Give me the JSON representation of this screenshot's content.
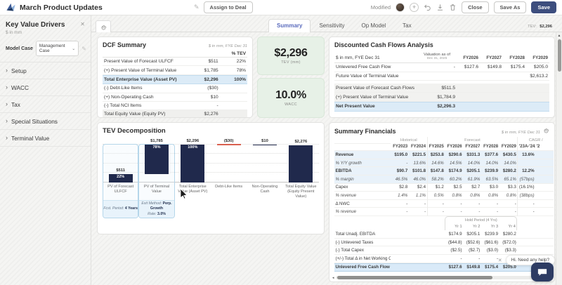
{
  "colors": {
    "accent_blue": "#5a6bbd",
    "navy_bar": "#20294c",
    "bar_red": "#d9604f",
    "highlight_blue": "#dcebf7",
    "card_green": "#e7f1e7",
    "save_navy": "#3d4e7e"
  },
  "icons": {
    "chevron_right": "›",
    "chevron_down": "⌄",
    "close": "✕",
    "pencil": "✎",
    "plus": "+",
    "up_arrow": "▲",
    "left_arrow": "◂"
  },
  "topbar": {
    "title": "March Product Updates",
    "assign_button": "Assign to Deal",
    "modified_label": "Modified",
    "close_button": "Close",
    "save_as_button": "Save As",
    "save_button": "Save"
  },
  "sidebar": {
    "title": "Key Value Drivers",
    "subtitle": "$ in mm",
    "model_case_label": "Model Case",
    "model_case_value": "Management Case",
    "sections": [
      {
        "label": "Setup"
      },
      {
        "label": "WACC"
      },
      {
        "label": "Tax"
      },
      {
        "label": "Special Situations"
      },
      {
        "label": "Terminal Value"
      }
    ]
  },
  "tabs": {
    "items": [
      {
        "label": "Summary",
        "active": true
      },
      {
        "label": "Sensitivity",
        "active": false
      },
      {
        "label": "Op Model",
        "active": false
      },
      {
        "label": "Tax",
        "active": false
      }
    ],
    "tev_label": "TEV:",
    "tev_value": "$2,296",
    "wacc_label": "WACC:",
    "wacc_value": "10.0%"
  },
  "dcf_summary": {
    "title": "DCF Summary",
    "subtitle": "$ in mm, FYE Dec 31",
    "col_header": "% TEV",
    "rows": [
      {
        "label": "Present Value of Forecast ULFCF",
        "value": "$511",
        "pct": "22%",
        "style": ""
      },
      {
        "label": "(+) Present Value of Terminal Value",
        "value": "$1,785",
        "pct": "78%",
        "style": ""
      },
      {
        "label": "Total Enterprise Value (Asset PV)",
        "value": "$2,296",
        "pct": "100%",
        "style": "blue"
      },
      {
        "label": "(-) Debt-Like Items",
        "value": "($30)",
        "pct": "",
        "style": ""
      },
      {
        "label": "(+) Non-Operating Cash",
        "value": "$10",
        "pct": "",
        "style": ""
      },
      {
        "label": "(-) Total NCI Items",
        "value": "-",
        "pct": "",
        "style": ""
      },
      {
        "label": "Total Equity Value (Equity PV)",
        "value": "$2,276",
        "pct": "",
        "style": "gray"
      }
    ]
  },
  "metric_cards": [
    {
      "value": "$2,296",
      "label": "TEV (mm)"
    },
    {
      "value": "10.0%",
      "label": "WACC"
    }
  ],
  "dcf_analysis": {
    "title": "Discounted Cash Flows Analysis",
    "corner": "$ in mm, FYE Dec 31",
    "val_col_line1": "Valuation as of",
    "val_col_line2": "Dec 31, 2025",
    "years": [
      "FY2026",
      "FY2027",
      "FY2028",
      "FY2029"
    ],
    "rows": [
      {
        "label": "Unlevered Free Cash Flow",
        "val": "-",
        "y": [
          "$127.6",
          "$149.8",
          "$175.4",
          "$205.0"
        ]
      },
      {
        "label": "Future Value of Terminal Value",
        "val": "",
        "y": [
          "",
          "",
          "",
          "$2,613.2"
        ]
      }
    ],
    "pv_rows": [
      {
        "label": "Present Value of Forecast Cash Flows",
        "val": "$511.5",
        "style": "grayrow"
      },
      {
        "label": "(+) Present Value of Terminal Value",
        "val": "$1,784.9",
        "style": "grayrow"
      },
      {
        "label": "Net Present Value",
        "val": "$2,296.3",
        "style": "bluerow"
      }
    ]
  },
  "tev_decomposition": {
    "title": "TEV Decomposition",
    "chart_data": {
      "type": "bar",
      "subtype": "waterfall",
      "title": "TEV Decomposition",
      "unit": "$ in mm",
      "categories": [
        "PV of Forecast ULFCF",
        "PV of Terminal Value",
        "Total Enterprise Value (Asset PV)",
        "Debt-Like Items",
        "Non-Operating Cash",
        "Total Equity Value (Equity Present Value)"
      ],
      "values": [
        511,
        1785,
        2296,
        -30,
        10,
        2276
      ],
      "ylim": [
        0,
        2296
      ],
      "grid": "dotted-horizontal",
      "bars": [
        {
          "category": "PV of Forecast ULFCF",
          "value_label": "$511",
          "pct_label": "22%",
          "bottom": 0,
          "height": 22.3,
          "color": "navy",
          "selected": true,
          "footer": [
            {
              "k": "Fcst. Period:",
              "v": "4 Years"
            }
          ]
        },
        {
          "category": "PV of Terminal Value",
          "value_label": "$1,785",
          "pct_label": "78%",
          "bottom": 22.3,
          "height": 77.7,
          "color": "navy",
          "selected": true,
          "footer": [
            {
              "k": "Exit Method:",
              "v": "Perp. Growth"
            },
            {
              "k": "Rate:",
              "v": "3.0%"
            }
          ]
        },
        {
          "category": "Total Enterprise Value (Asset PV)",
          "value_label": "$2,296",
          "pct_label": "100%",
          "bottom": 0,
          "height": 100,
          "color": "navy",
          "selected": false
        },
        {
          "category": "Debt-Like Items",
          "value_label": "($30)",
          "pct_label": "",
          "bottom": 98.7,
          "height": 1.3,
          "color": "red",
          "selected": false
        },
        {
          "category": "Non-Operating Cash",
          "value_label": "$10",
          "pct_label": "",
          "bottom": 98.7,
          "height": 0.5,
          "color": "navy",
          "selected": false
        },
        {
          "category": "Total Equity Value (Equity Present Value)",
          "value_label": "$2,276",
          "pct_label": "",
          "bottom": 0,
          "height": 99.1,
          "color": "navy",
          "selected": false
        }
      ]
    }
  },
  "summary_financials": {
    "title": "Summary Financials",
    "subtitle": "$ in mm, FYE Dec 31",
    "group_historical": "Historical",
    "group_forecast": "Forecast",
    "group_cagr": "CAGR /",
    "years": [
      "FY2023",
      "FY2024",
      "FY2025",
      "FY2026",
      "FY2027",
      "FY2028",
      "FY2029"
    ],
    "cagr_col_header": "'23A-'24A",
    "clipped_col_header": "'2",
    "rows": [
      {
        "label": "Revenue",
        "bold": true,
        "shade": true,
        "cells": [
          "$195.0",
          "$221.5",
          "$253.8",
          "$290.6",
          "$331.3",
          "$377.6",
          "$430.5"
        ],
        "cagr": "13.6%",
        "cagr_bold": true
      },
      {
        "label": "% Y/Y growth",
        "italic": true,
        "shade": true,
        "cells": [
          "-",
          "13.6%",
          "14.6%",
          "14.5%",
          "14.0%",
          "14.0%",
          "14.0%"
        ],
        "cagr": ""
      },
      {
        "label": "EBITDA",
        "bold": true,
        "shade": true,
        "cells": [
          "$90.7",
          "$101.8",
          "$147.8",
          "$174.9",
          "$205.1",
          "$239.9",
          "$280.2"
        ],
        "cagr": "12.2%",
        "cagr_bold": true
      },
      {
        "label": "% margin",
        "italic": true,
        "shade": true,
        "cells": [
          "46.5%",
          "46.0%",
          "58.2%",
          "60.2%",
          "61.9%",
          "63.5%",
          "65.1%"
        ],
        "cagr": "(57bps)",
        "cagr_italic": true
      },
      {
        "label": "Capex",
        "cells": [
          "$2.8",
          "$2.4",
          "$1.2",
          "$2.5",
          "$2.7",
          "$3.0",
          "$3.3"
        ],
        "cagr": "(16.1%)"
      },
      {
        "label": "% revenue",
        "italic": true,
        "cells": [
          "1.4%",
          "1.1%",
          "0.5%",
          "0.8%",
          "0.8%",
          "0.8%",
          "0.8%"
        ],
        "cagr": "(38bps)",
        "cagr_italic": true
      },
      {
        "label": "Δ NWC",
        "cells": [
          "-",
          "-",
          "-",
          "-",
          "-",
          "-",
          "-"
        ],
        "cagr": "-"
      },
      {
        "label": "% revenue",
        "italic": true,
        "cells": [
          "-",
          "-",
          "-",
          "-",
          "-",
          "-",
          "-"
        ],
        "cagr": "-"
      }
    ],
    "hold_period": {
      "box_title": "Hold Period (4 Yrs)",
      "yr_labels": [
        "Yr 1",
        "Yr 2",
        "Yr 3",
        "Yr 4"
      ],
      "rows": [
        {
          "label": "Total Unadj. EBITDA",
          "cells": [
            "$174.9",
            "$205.1",
            "$239.9",
            "$280.2"
          ]
        },
        {
          "label": "(-) Unlevered Taxes",
          "cells": [
            "($44.8)",
            "($52.6)",
            "($61.6)",
            "($72.0)"
          ]
        },
        {
          "label": "(-) Total Capex",
          "cells": [
            "($2.5)",
            "($2.7)",
            "($3.0)",
            "($3.3)"
          ]
        },
        {
          "label": "(+/-) Total Δ in Net Working Capital",
          "cells": [
            "-",
            "-",
            "-",
            "-"
          ]
        },
        {
          "label": "Unlevered Free Cash Flow",
          "bold": true,
          "ufcf": true,
          "cells": [
            "$127.6",
            "$149.8",
            "$175.4",
            "$205.0"
          ]
        }
      ]
    }
  },
  "chat": {
    "tooltip": "Hi. Need any help?"
  }
}
